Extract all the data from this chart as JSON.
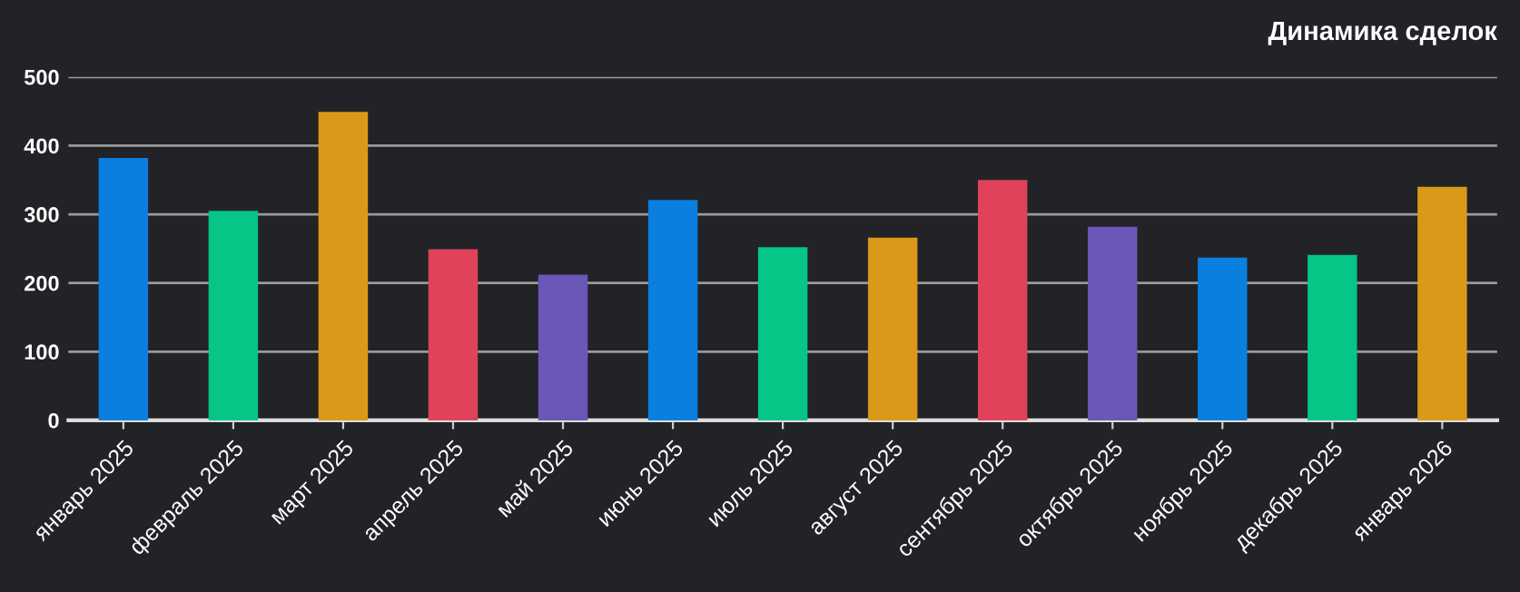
{
  "chart_data": {
    "type": "bar",
    "title": "Динамика сделок",
    "categories": [
      "январь 2025",
      "февраль 2025",
      "март 2025",
      "апрель 2025",
      "май 2025",
      "июнь 2025",
      "июль 2025",
      "август 2025",
      "сентябрь 2025",
      "октябрь 2025",
      "ноябрь 2025",
      "декабрь 2025",
      "январь 2026"
    ],
    "values": [
      382,
      305,
      449,
      249,
      212,
      321,
      252,
      266,
      350,
      282,
      237,
      241,
      340
    ],
    "colors": [
      "#0a7fe0",
      "#05c686",
      "#db9919",
      "#df4259",
      "#6b57b7",
      "#0a7fe0",
      "#05c686",
      "#db9919",
      "#df4259",
      "#6b57b7",
      "#0a7fe0",
      "#05c686",
      "#db9919"
    ],
    "ylim": [
      0,
      500
    ],
    "yticks": [
      0,
      100,
      200,
      300,
      400,
      500
    ],
    "grid": "y",
    "legend": false
  }
}
